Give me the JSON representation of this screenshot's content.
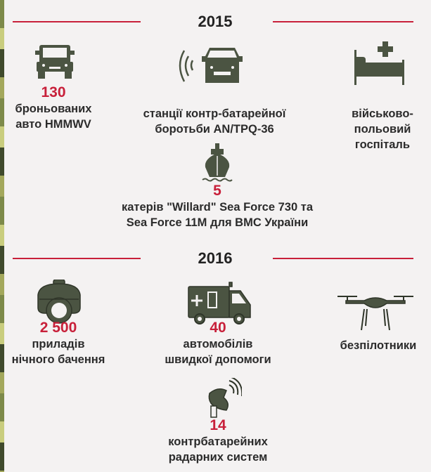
{
  "colors": {
    "accent": "#c8203a",
    "icon": "#4b5442",
    "text": "#2b2b2b",
    "background": "#f4f2f2"
  },
  "sections": [
    {
      "year": "2015",
      "items": [
        {
          "icon": "humvee-icon",
          "number": "130",
          "lines": [
            "броньованих",
            "авто HMMWV"
          ]
        },
        {
          "icon": "radar-truck-icon",
          "number": "",
          "lines": [
            "станції контр-батарейної",
            "боротьби AN/TPQ-36"
          ]
        },
        {
          "icon": "hospital-bed-icon",
          "number": "",
          "lines": [
            "військово-",
            "польовий",
            "госпіталь"
          ]
        },
        {
          "icon": "ship-icon",
          "number": "5",
          "lines": [
            "катерів \"Willard\" Sea Force 730 та",
            "Sea Force 11M для ВМС України"
          ]
        }
      ]
    },
    {
      "year": "2016",
      "items": [
        {
          "icon": "night-vision-icon",
          "number": "2 500",
          "lines": [
            "приладів",
            "нічного бачення"
          ]
        },
        {
          "icon": "ambulance-icon",
          "number": "40",
          "lines": [
            "автомобілів",
            "швидкої допомоги"
          ]
        },
        {
          "icon": "drone-icon",
          "number": "",
          "lines": [
            "безпілотники"
          ]
        },
        {
          "icon": "radar-dish-icon",
          "number": "14",
          "lines": [
            "контрбатарейних",
            "радарних систем"
          ]
        }
      ]
    }
  ]
}
